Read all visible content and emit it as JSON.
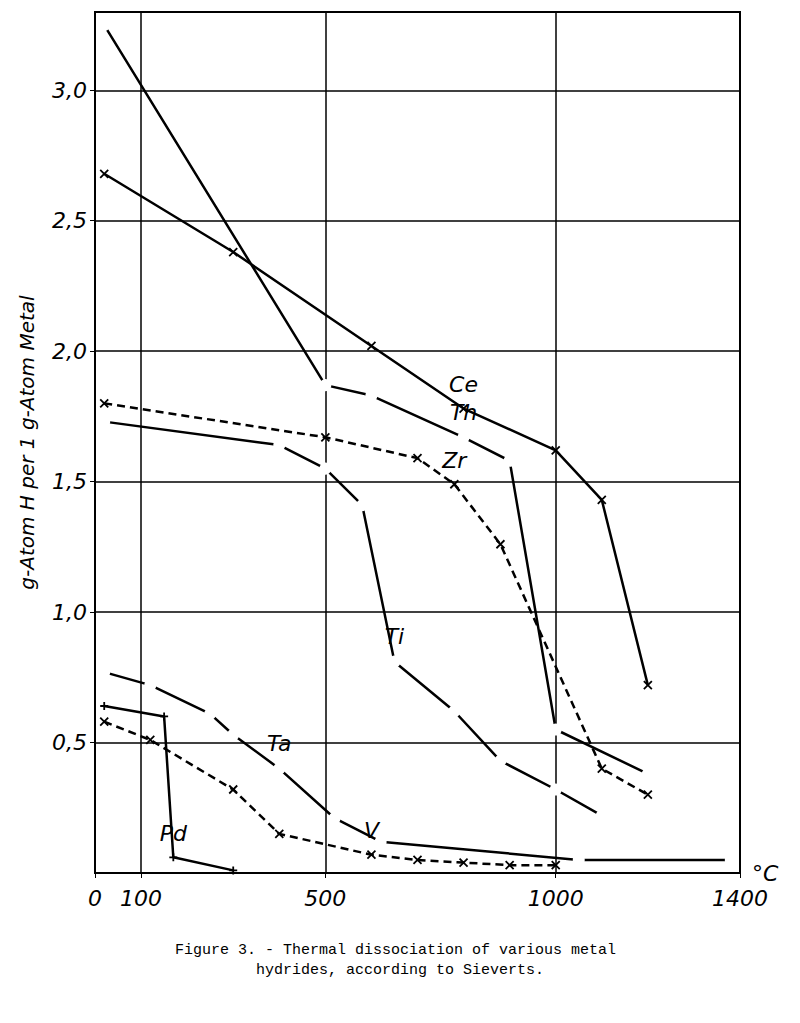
{
  "chart_data": {
    "type": "line",
    "title": "Figure 3. - Thermal dissociation of various metal hydrides, according to Sieverts.",
    "xlabel": "°C",
    "ylabel": "g-Atom H per 1 g-Atom Metal",
    "xlim": [
      0,
      1400
    ],
    "xticks": [
      0,
      100,
      500,
      1000,
      1400
    ],
    "ylim": [
      0,
      3.3
    ],
    "yticks": [
      {
        "value": 0.5,
        "label": "0,5"
      },
      {
        "value": 1.0,
        "label": "1,0"
      },
      {
        "value": 1.5,
        "label": "1,5"
      },
      {
        "value": 2.0,
        "label": "2,0"
      },
      {
        "value": 2.5,
        "label": "2,5"
      },
      {
        "value": 3.0,
        "label": "3,0"
      }
    ],
    "grid": true,
    "series": [
      {
        "name": "Ce",
        "color": "#000000",
        "marker": "x",
        "line_style": "solid",
        "x": [
          20,
          300,
          600,
          800,
          1000,
          1100,
          1200
        ],
        "values": [
          2.68,
          2.38,
          2.02,
          1.78,
          1.62,
          1.43,
          0.72
        ]
      },
      {
        "name": "Th",
        "color": "#000000",
        "marker": "circle",
        "line_style": "solid",
        "x": [
          20,
          500,
          600,
          800,
          900,
          1000,
          1200
        ],
        "values": [
          3.25,
          1.87,
          1.83,
          1.67,
          1.58,
          0.55,
          0.38
        ]
      },
      {
        "name": "Zr",
        "color": "#000000",
        "marker": "x",
        "line_style": "dashed",
        "x": [
          20,
          500,
          700,
          780,
          880,
          1100,
          1200
        ],
        "values": [
          1.8,
          1.67,
          1.59,
          1.49,
          1.26,
          0.4,
          0.3
        ]
      },
      {
        "name": "Ti",
        "color": "#000000",
        "marker": "circle",
        "line_style": "solid",
        "x": [
          20,
          400,
          500,
          580,
          650,
          780,
          880,
          1000,
          1100
        ],
        "values": [
          1.73,
          1.64,
          1.55,
          1.41,
          0.81,
          0.62,
          0.43,
          0.32,
          0.22
        ]
      },
      {
        "name": "Ta",
        "color": "#000000",
        "marker": "circle",
        "line_style": "solid",
        "x": [
          20,
          120,
          250,
          300,
          400,
          520,
          620,
          1050,
          1380
        ],
        "values": [
          0.77,
          0.72,
          0.61,
          0.53,
          0.4,
          0.21,
          0.12,
          0.05,
          0.05
        ]
      },
      {
        "name": "V",
        "color": "#000000",
        "marker": "x",
        "line_style": "dashed",
        "x": [
          20,
          120,
          300,
          400,
          600,
          700,
          800,
          900,
          1000
        ],
        "values": [
          0.58,
          0.51,
          0.32,
          0.15,
          0.07,
          0.05,
          0.04,
          0.03,
          0.03
        ]
      },
      {
        "name": "Pd",
        "color": "#000000",
        "marker": "plus",
        "line_style": "solid",
        "x": [
          20,
          150,
          170,
          300
        ],
        "values": [
          0.64,
          0.6,
          0.06,
          0.01
        ]
      }
    ]
  }
}
